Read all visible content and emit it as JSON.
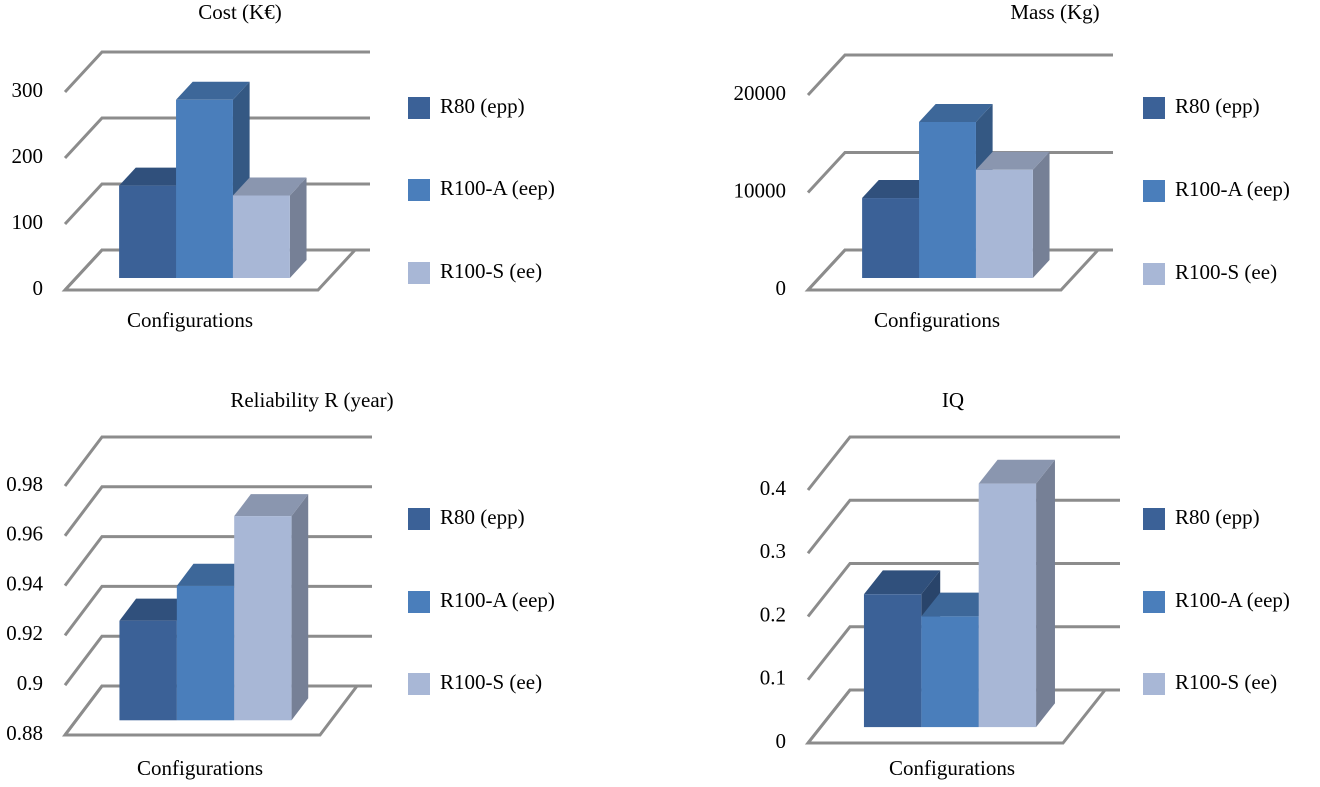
{
  "chart_data": [
    {
      "type": "bar",
      "title": "Cost (K€)",
      "x_label": "Configurations",
      "ylim": [
        0,
        300
      ],
      "yticks": [
        0,
        100,
        200,
        300
      ],
      "series": [
        {
          "name": "R80 (epp)",
          "color": "#3b6197",
          "values": [
            140
          ]
        },
        {
          "name": "R100-A (eep)",
          "color": "#4a7ebb",
          "values": [
            270
          ]
        },
        {
          "name": "R100-S (ee)",
          "color": "#a8b7d6",
          "values": [
            125
          ]
        }
      ]
    },
    {
      "type": "bar",
      "title": "Mass (Kg)",
      "x_label": "Configurations",
      "ylim": [
        0,
        20000
      ],
      "yticks": [
        0,
        10000,
        20000
      ],
      "series": [
        {
          "name": "R80 (epp)",
          "color": "#3b6197",
          "values": [
            8200
          ]
        },
        {
          "name": "R100-A (eep)",
          "color": "#4a7ebb",
          "values": [
            16000
          ]
        },
        {
          "name": "R100-S (ee)",
          "color": "#a8b7d6",
          "values": [
            11100
          ]
        }
      ]
    },
    {
      "type": "bar",
      "title": "Reliability R (year)",
      "x_label": "Configurations",
      "ylim": [
        0.88,
        0.98
      ],
      "yticks": [
        0.88,
        0.9,
        0.92,
        0.94,
        0.96,
        0.98
      ],
      "series": [
        {
          "name": "R80 (epp)",
          "color": "#3b6197",
          "values": [
            0.92
          ]
        },
        {
          "name": "R100-A (eep)",
          "color": "#4a7ebb",
          "values": [
            0.934
          ]
        },
        {
          "name": "R100-S (ee)",
          "color": "#a8b7d6",
          "values": [
            0.962
          ]
        }
      ]
    },
    {
      "type": "bar",
      "title": "IQ",
      "x_label": "Configurations",
      "ylim": [
        0,
        0.4
      ],
      "yticks": [
        0,
        0.1,
        0.2,
        0.3,
        0.4
      ],
      "series": [
        {
          "name": "R80 (epp)",
          "color": "#3b6197",
          "values": [
            0.21
          ]
        },
        {
          "name": "R100-A (eep)",
          "color": "#4a7ebb",
          "values": [
            0.175
          ]
        },
        {
          "name": "R100-S (ee)",
          "color": "#a8b7d6",
          "values": [
            0.385
          ]
        }
      ]
    }
  ]
}
